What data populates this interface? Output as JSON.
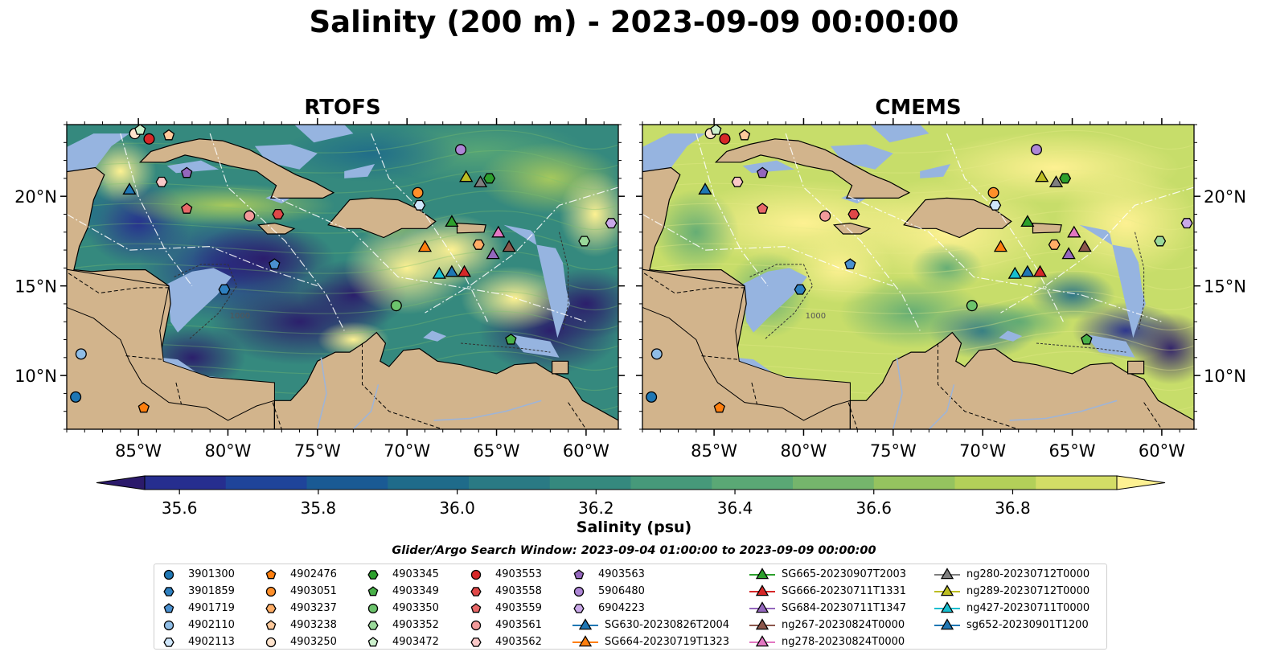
{
  "title": "Salinity (200 m) - 2023-09-09 00:00:00",
  "panels": [
    {
      "title": "RTOFS",
      "left": "RTOFS"
    },
    {
      "title": "CMEMS",
      "left": "CMEMS"
    }
  ],
  "colorbar": {
    "label": "Salinity (psu)",
    "ticks": [
      "35.6",
      "35.8",
      "36.0",
      "36.2",
      "36.4",
      "36.6",
      "36.8"
    ],
    "colors": [
      "#2b1a6b",
      "#262e8f",
      "#1f449a",
      "#1a5a94",
      "#1f6b8a",
      "#2a7a84",
      "#35897e",
      "#46997a",
      "#5aa875",
      "#75b56c",
      "#95c35f",
      "#b3d059",
      "#d3dd66",
      "#fdf192"
    ],
    "extend": "both"
  },
  "window_label": "Glider/Argo Search Window: 2023-09-04 01:00:00 to 2023-09-09 00:00:00",
  "axes": {
    "x_ticks": [
      "85°W",
      "80°W",
      "75°W",
      "70°W",
      "65°W",
      "60°W"
    ],
    "y_ticks": [
      "20°N",
      "15°N",
      "10°N"
    ]
  },
  "contour_labels": [
    "1000"
  ],
  "chart_data": {
    "type": "scatter",
    "title": "Salinity (200 m) - 2023-09-09 00:00:00",
    "xlabel": "",
    "ylabel": "",
    "xlim": [
      -89,
      -58.2
    ],
    "ylim": [
      7,
      24
    ],
    "x_ticks": [
      -85,
      -80,
      -75,
      -70,
      -65,
      -60
    ],
    "y_ticks": [
      20,
      15,
      10
    ],
    "color_range": [
      35.55,
      36.95
    ],
    "series": [
      {
        "name": "3901300",
        "marker": "circle",
        "color": "#1f77b4",
        "x": [
          -88.5
        ],
        "y": [
          8.8
        ]
      },
      {
        "name": "3901859",
        "marker": "hexagon",
        "color": "#2e80c0",
        "x": [
          -80.2
        ],
        "y": [
          14.8
        ]
      },
      {
        "name": "4901719",
        "marker": "pentagon",
        "color": "#4a90d0",
        "x": [
          -77.4
        ],
        "y": [
          16.2
        ]
      },
      {
        "name": "4902110",
        "marker": "circle",
        "color": "#8fbde6",
        "x": [
          -88.2
        ],
        "y": [
          11.2
        ]
      },
      {
        "name": "4902113",
        "marker": "hexagon",
        "color": "#cfe6fb",
        "x": [
          -69.3
        ],
        "y": [
          19.5
        ]
      },
      {
        "name": "4902476",
        "marker": "pentagon",
        "color": "#ff7f0e",
        "x": [
          -84.7
        ],
        "y": [
          8.2
        ]
      },
      {
        "name": "4903051",
        "marker": "circle",
        "color": "#ff8f2a",
        "x": [
          -69.4
        ],
        "y": [
          20.2
        ]
      },
      {
        "name": "4903237",
        "marker": "hexagon",
        "color": "#ffad66",
        "x": [
          -66.0
        ],
        "y": [
          17.3
        ]
      },
      {
        "name": "4903238",
        "marker": "pentagon",
        "color": "#ffc99b",
        "x": [
          -83.3
        ],
        "y": [
          23.4
        ]
      },
      {
        "name": "4903250",
        "marker": "circle",
        "color": "#ffe3cc",
        "x": [
          -85.2
        ],
        "y": [
          23.5
        ]
      },
      {
        "name": "4903345",
        "marker": "hexagon",
        "color": "#2ca02c",
        "x": [
          -65.4
        ],
        "y": [
          21.0
        ]
      },
      {
        "name": "4903349",
        "marker": "pentagon",
        "color": "#48b048",
        "x": [
          -64.2
        ],
        "y": [
          12.0
        ]
      },
      {
        "name": "4903350",
        "marker": "circle",
        "color": "#6cc36c",
        "x": [
          -70.6
        ],
        "y": [
          13.9
        ]
      },
      {
        "name": "4903352",
        "marker": "hexagon",
        "color": "#9ad99a",
        "x": [
          -60.1
        ],
        "y": [
          17.5
        ]
      },
      {
        "name": "4903472",
        "marker": "pentagon",
        "color": "#ccf0cc",
        "x": [
          -84.9
        ],
        "y": [
          23.7
        ]
      },
      {
        "name": "4903553",
        "marker": "circle",
        "color": "#d62728",
        "x": [
          -84.4
        ],
        "y": [
          23.2
        ]
      },
      {
        "name": "4903558",
        "marker": "hexagon",
        "color": "#e04848",
        "x": [
          -77.2
        ],
        "y": [
          19.0
        ]
      },
      {
        "name": "4903559",
        "marker": "pentagon",
        "color": "#e86868",
        "x": [
          -82.3
        ],
        "y": [
          19.3
        ]
      },
      {
        "name": "4903561",
        "marker": "circle",
        "color": "#f29a9a",
        "x": [
          -78.8
        ],
        "y": [
          18.9
        ]
      },
      {
        "name": "4903562",
        "marker": "hexagon",
        "color": "#fac8c8",
        "x": [
          -83.7
        ],
        "y": [
          20.8
        ]
      },
      {
        "name": "4903563",
        "marker": "pentagon",
        "color": "#9467bd",
        "x": [
          -82.3
        ],
        "y": [
          21.3
        ]
      },
      {
        "name": "5906480",
        "marker": "circle",
        "color": "#ad86d6",
        "x": [
          -67.0
        ],
        "y": [
          22.6
        ]
      },
      {
        "name": "6904223",
        "marker": "hexagon",
        "color": "#c9a8e8",
        "x": [
          -58.6
        ],
        "y": [
          18.5
        ]
      },
      {
        "name": "SG630-20230826T2004",
        "marker": "triangle",
        "color": "#1f77b4",
        "x": [
          -85.5
        ],
        "y": [
          20.4
        ]
      },
      {
        "name": "SG664-20230719T1323",
        "marker": "triangle",
        "color": "#ff7f0e",
        "x": [
          -69.0
        ],
        "y": [
          17.2
        ]
      },
      {
        "name": "SG665-20230907T2003",
        "marker": "triangle",
        "color": "#2ca02c",
        "x": [
          -67.5
        ],
        "y": [
          18.6
        ]
      },
      {
        "name": "SG666-20230711T1331",
        "marker": "triangle",
        "color": "#d62728",
        "x": [
          -66.8
        ],
        "y": [
          15.8
        ]
      },
      {
        "name": "SG684-20230711T1347",
        "marker": "triangle",
        "color": "#9467bd",
        "x": [
          -65.2
        ],
        "y": [
          16.8
        ]
      },
      {
        "name": "ng267-20230824T0000",
        "marker": "triangle",
        "color": "#8c564b",
        "x": [
          -64.3
        ],
        "y": [
          17.2
        ]
      },
      {
        "name": "ng278-20230824T0000",
        "marker": "triangle",
        "color": "#e377c2",
        "x": [
          -64.9
        ],
        "y": [
          18.0
        ]
      },
      {
        "name": "ng280-20230712T0000",
        "marker": "triangle",
        "color": "#7f7f7f",
        "x": [
          -65.9
        ],
        "y": [
          20.8
        ]
      },
      {
        "name": "ng289-20230712T0000",
        "marker": "triangle",
        "color": "#bcbd22",
        "x": [
          -66.7
        ],
        "y": [
          21.1
        ]
      },
      {
        "name": "ng427-20230711T0000",
        "marker": "triangle",
        "color": "#17becf",
        "x": [
          -68.2
        ],
        "y": [
          15.7
        ]
      },
      {
        "name": "sg652-20230901T1200",
        "marker": "triangle",
        "color": "#1f77b4",
        "x": [
          -67.5
        ],
        "y": [
          15.8
        ]
      }
    ]
  },
  "legend": {
    "columns": [
      [
        "3901300",
        "3901859",
        "4901719",
        "4902110",
        "4902113"
      ],
      [
        "4902476",
        "4903051",
        "4903237",
        "4903238",
        "4903250"
      ],
      [
        "4903345",
        "4903349",
        "4903350",
        "4903352",
        "4903472"
      ],
      [
        "4903553",
        "4903558",
        "4903559",
        "4903561",
        "4903562"
      ],
      [
        "4903563",
        "5906480",
        "6904223",
        "SG630-20230826T2004",
        "SG664-20230719T1323"
      ],
      [
        "SG665-20230907T2003",
        "SG666-20230711T1331",
        "SG684-20230711T1347",
        "ng267-20230824T0000",
        "ng278-20230824T0000"
      ],
      [
        "ng280-20230712T0000",
        "ng289-20230712T0000",
        "ng427-20230711T0000",
        "sg652-20230901T1200"
      ]
    ]
  },
  "colors": {
    "land": "#d2b48c",
    "shelf": "#96b4e0",
    "deep_low": "#2b1a6b",
    "high": "#fdf192"
  }
}
